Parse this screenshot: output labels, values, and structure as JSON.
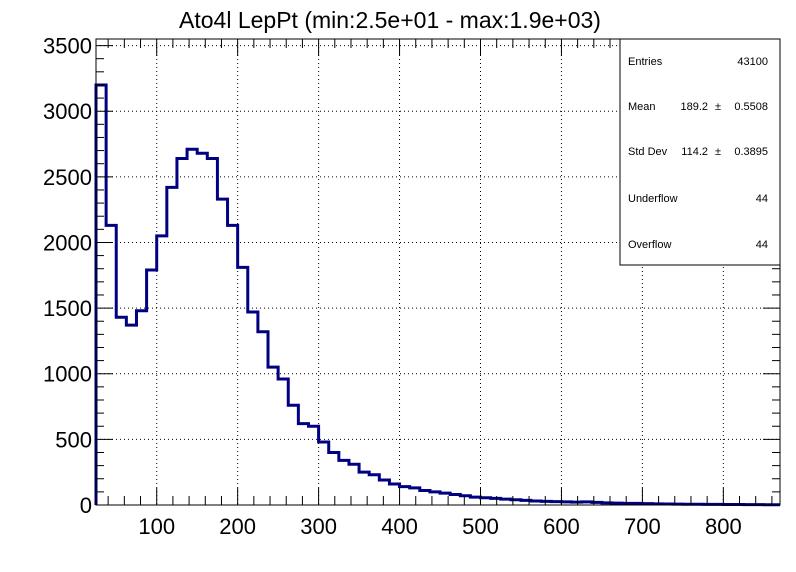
{
  "chart_data": {
    "type": "bar",
    "title": "Ato4l LepPt (min:2.5e+01 - max:1.9e+03)",
    "xlabel": "",
    "ylabel": "",
    "xlim": [
      25,
      870
    ],
    "ylim": [
      0,
      3550
    ],
    "grid": true,
    "bin_width": 12.5,
    "x_ticks": [
      100,
      200,
      300,
      400,
      500,
      600,
      700,
      800
    ],
    "y_ticks": [
      0,
      500,
      1000,
      1500,
      2000,
      2500,
      3000,
      3500
    ],
    "bin_edges": [
      25,
      37.5,
      50,
      62.5,
      75,
      87.5,
      100,
      112.5,
      125,
      137.5,
      150,
      162.5,
      175,
      187.5,
      200,
      212.5,
      225,
      237.5,
      250,
      262.5,
      275,
      287.5,
      300,
      312.5,
      325,
      337.5,
      350,
      362.5,
      375,
      387.5,
      400,
      412.5,
      425,
      437.5,
      450,
      462.5,
      475,
      487.5,
      500,
      512.5,
      525,
      537.5,
      550,
      562.5,
      575,
      587.5,
      600,
      612.5,
      625,
      637.5,
      650,
      662.5,
      675,
      687.5,
      700,
      712.5,
      725,
      737.5,
      750,
      762.5,
      775,
      787.5,
      800,
      812.5,
      825,
      837.5,
      850,
      862.5,
      875
    ],
    "values": [
      3200,
      2130,
      1430,
      1370,
      1480,
      1790,
      2050,
      2420,
      2640,
      2710,
      2680,
      2640,
      2330,
      2130,
      1810,
      1470,
      1320,
      1050,
      960,
      760,
      620,
      600,
      480,
      400,
      340,
      310,
      250,
      230,
      190,
      160,
      140,
      130,
      110,
      100,
      90,
      80,
      70,
      60,
      55,
      50,
      45,
      40,
      35,
      30,
      28,
      26,
      24,
      22,
      24,
      20,
      16,
      14,
      12,
      12,
      10,
      9,
      8,
      7,
      6,
      6,
      5,
      5,
      4,
      4,
      3,
      3,
      2,
      2
    ],
    "line_color": "#000080",
    "stats": {
      "entries_label": "Entries",
      "entries_value": "43100",
      "mean_label": "Mean",
      "mean_value": "189.2",
      "mean_pm": "±",
      "mean_err": "0.5508",
      "std_label": "Std Dev",
      "std_value": "114.2",
      "std_pm": "±",
      "std_err": "0.3895",
      "underflow_label": "Underflow",
      "underflow_value": "44",
      "overflow_label": "Overflow",
      "overflow_value": "44"
    }
  }
}
